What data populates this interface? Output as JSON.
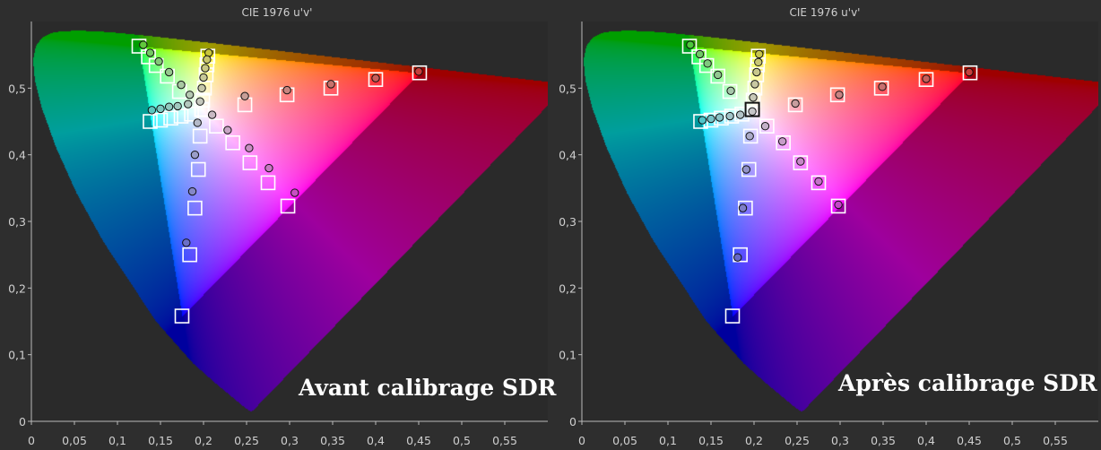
{
  "chart_data": [
    {
      "type": "scatter",
      "title": "CIE 1976 u'v'",
      "caption": "Avant calibrage SDR",
      "xlim": [
        0,
        0.6
      ],
      "ylim": [
        0,
        0.6
      ],
      "xticks": [
        "0",
        "0,05",
        "0,1",
        "0,15",
        "0,2",
        "0,25",
        "0,3",
        "0,35",
        "0,4",
        "0,45",
        "0,5",
        "0,55"
      ],
      "yticks": [
        "0",
        "0,1",
        "0,2",
        "0,3",
        "0,4",
        "0,5"
      ],
      "grid": false,
      "gamut_triangle": {
        "red": [
          0.451,
          0.523
        ],
        "green": [
          0.125,
          0.563
        ],
        "blue": [
          0.175,
          0.158
        ]
      },
      "white_point": [
        0.198,
        0.468
      ],
      "series": [
        {
          "marker": "square",
          "points": [
            [
              0.451,
              0.523
            ],
            [
              0.4,
              0.513
            ],
            [
              0.348,
              0.5
            ],
            [
              0.297,
              0.49
            ],
            [
              0.248,
              0.475
            ],
            [
              0.125,
              0.563
            ],
            [
              0.136,
              0.547
            ],
            [
              0.145,
              0.534
            ],
            [
              0.158,
              0.518
            ],
            [
              0.172,
              0.495
            ],
            [
              0.205,
              0.548
            ],
            [
              0.204,
              0.535
            ],
            [
              0.203,
              0.52
            ],
            [
              0.201,
              0.5
            ],
            [
              0.199,
              0.482
            ],
            [
              0.138,
              0.45
            ],
            [
              0.15,
              0.452
            ],
            [
              0.162,
              0.455
            ],
            [
              0.174,
              0.458
            ],
            [
              0.186,
              0.461
            ],
            [
              0.175,
              0.158
            ],
            [
              0.184,
              0.25
            ],
            [
              0.19,
              0.32
            ],
            [
              0.194,
              0.378
            ],
            [
              0.196,
              0.428
            ],
            [
              0.298,
              0.323
            ],
            [
              0.275,
              0.358
            ],
            [
              0.254,
              0.388
            ],
            [
              0.234,
              0.418
            ],
            [
              0.215,
              0.443
            ],
            [
              0.198,
              0.468
            ]
          ]
        },
        {
          "marker": "circle",
          "points": [
            [
              0.45,
              0.525
            ],
            [
              0.4,
              0.515
            ],
            [
              0.348,
              0.506
            ],
            [
              0.297,
              0.497
            ],
            [
              0.248,
              0.488
            ],
            [
              0.13,
              0.565
            ],
            [
              0.138,
              0.553
            ],
            [
              0.148,
              0.54
            ],
            [
              0.16,
              0.524
            ],
            [
              0.174,
              0.505
            ],
            [
              0.184,
              0.49
            ],
            [
              0.206,
              0.553
            ],
            [
              0.204,
              0.543
            ],
            [
              0.202,
              0.53
            ],
            [
              0.2,
              0.516
            ],
            [
              0.198,
              0.5
            ],
            [
              0.14,
              0.467
            ],
            [
              0.15,
              0.469
            ],
            [
              0.16,
              0.472
            ],
            [
              0.17,
              0.473
            ],
            [
              0.182,
              0.476
            ],
            [
              0.18,
              0.268
            ],
            [
              0.187,
              0.345
            ],
            [
              0.19,
              0.4
            ],
            [
              0.193,
              0.448
            ],
            [
              0.306,
              0.343
            ],
            [
              0.276,
              0.38
            ],
            [
              0.253,
              0.41
            ],
            [
              0.228,
              0.437
            ],
            [
              0.21,
              0.46
            ],
            [
              0.196,
              0.48
            ]
          ]
        }
      ]
    },
    {
      "type": "scatter",
      "title": "CIE 1976 u'v'",
      "caption": "Après calibrage SDR",
      "xlim": [
        0,
        0.6
      ],
      "ylim": [
        0,
        0.6
      ],
      "xticks": [
        "0",
        "0,05",
        "0,1",
        "0,15",
        "0,2",
        "0,25",
        "0,3",
        "0,35",
        "0,4",
        "0,45",
        "0,5",
        "0,55"
      ],
      "yticks": [
        "0",
        "0,1",
        "0,2",
        "0,3",
        "0,4",
        "0,5"
      ],
      "grid": false,
      "gamut_triangle": {
        "red": [
          0.451,
          0.523
        ],
        "green": [
          0.125,
          0.563
        ],
        "blue": [
          0.175,
          0.158
        ]
      },
      "white_point": [
        0.198,
        0.468
      ],
      "series": [
        {
          "marker": "square",
          "points": [
            [
              0.451,
              0.523
            ],
            [
              0.4,
              0.513
            ],
            [
              0.348,
              0.5
            ],
            [
              0.297,
              0.49
            ],
            [
              0.248,
              0.475
            ],
            [
              0.125,
              0.563
            ],
            [
              0.136,
              0.547
            ],
            [
              0.145,
              0.534
            ],
            [
              0.158,
              0.518
            ],
            [
              0.172,
              0.495
            ],
            [
              0.205,
              0.548
            ],
            [
              0.204,
              0.535
            ],
            [
              0.203,
              0.52
            ],
            [
              0.201,
              0.5
            ],
            [
              0.199,
              0.482
            ],
            [
              0.138,
              0.45
            ],
            [
              0.15,
              0.452
            ],
            [
              0.162,
              0.455
            ],
            [
              0.174,
              0.458
            ],
            [
              0.186,
              0.461
            ],
            [
              0.175,
              0.158
            ],
            [
              0.184,
              0.25
            ],
            [
              0.19,
              0.32
            ],
            [
              0.194,
              0.378
            ],
            [
              0.196,
              0.428
            ],
            [
              0.298,
              0.323
            ],
            [
              0.275,
              0.358
            ],
            [
              0.254,
              0.388
            ],
            [
              0.234,
              0.418
            ],
            [
              0.215,
              0.443
            ],
            [
              0.198,
              0.468
            ]
          ]
        },
        {
          "marker": "circle",
          "points": [
            [
              0.45,
              0.524
            ],
            [
              0.4,
              0.514
            ],
            [
              0.349,
              0.502
            ],
            [
              0.299,
              0.49
            ],
            [
              0.248,
              0.477
            ],
            [
              0.126,
              0.565
            ],
            [
              0.137,
              0.551
            ],
            [
              0.146,
              0.537
            ],
            [
              0.158,
              0.52
            ],
            [
              0.173,
              0.496
            ],
            [
              0.206,
              0.551
            ],
            [
              0.205,
              0.539
            ],
            [
              0.203,
              0.524
            ],
            [
              0.201,
              0.506
            ],
            [
              0.199,
              0.486
            ],
            [
              0.14,
              0.452
            ],
            [
              0.15,
              0.454
            ],
            [
              0.16,
              0.456
            ],
            [
              0.172,
              0.458
            ],
            [
              0.184,
              0.46
            ],
            [
              0.181,
              0.246
            ],
            [
              0.187,
              0.32
            ],
            [
              0.191,
              0.378
            ],
            [
              0.195,
              0.428
            ],
            [
              0.298,
              0.325
            ],
            [
              0.275,
              0.36
            ],
            [
              0.254,
              0.39
            ],
            [
              0.233,
              0.42
            ],
            [
              0.213,
              0.443
            ],
            [
              0.198,
              0.465
            ]
          ]
        }
      ]
    }
  ]
}
